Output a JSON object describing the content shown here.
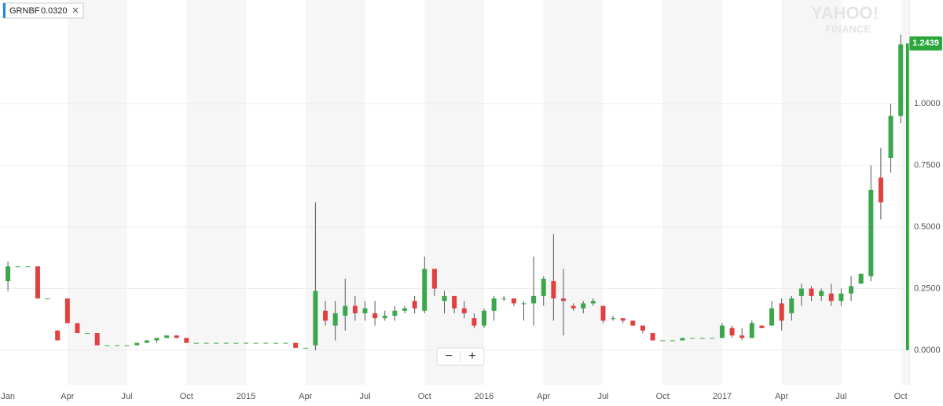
{
  "chart_data": {
    "type": "candlestick",
    "legend": {
      "value": "0.0320"
    },
    "watermark": [
      "YAHOO!",
      "FINANCE"
    ],
    "zoom": [
      "−",
      "+"
    ],
    "up_color": "#3aa84a",
    "down_color": "#e2403f",
    "last_color": "#2aa63a",
    "grid": true,
    "xlim": [
      -0.8,
      90.7
    ],
    "xticks": [
      {
        "value": 0,
        "label": "Jan"
      },
      {
        "value": 6,
        "label": "Apr"
      },
      {
        "value": 12,
        "label": "Jul"
      },
      {
        "value": 18,
        "label": "Oct"
      },
      {
        "value": 24,
        "label": "2015"
      },
      {
        "value": 30,
        "label": "Apr"
      },
      {
        "value": 36,
        "label": "Jul"
      },
      {
        "value": 42,
        "label": "Oct"
      },
      {
        "value": 48,
        "label": "2016"
      },
      {
        "value": 54,
        "label": "Apr"
      },
      {
        "value": 60,
        "label": "Jul"
      },
      {
        "value": 66,
        "label": "Oct"
      },
      {
        "value": 72,
        "label": "2017"
      },
      {
        "value": 78,
        "label": "Apr"
      },
      {
        "value": 84,
        "label": "Jul"
      },
      {
        "value": 90,
        "label": "Oct"
      }
    ],
    "ylim": [
      -0.14,
      1.42
    ],
    "yticks": [
      {
        "value": 0,
        "label": "0.0000"
      },
      {
        "value": 0.25,
        "label": "0.2500"
      },
      {
        "value": 0.5,
        "label": "0.5000"
      },
      {
        "value": 0.75,
        "label": "0.7500"
      },
      {
        "value": 1,
        "label": "1.0000"
      }
    ],
    "last_value": 1.2439,
    "series": [
      {
        "name": "GRNBF",
        "open": [
          0.28,
          0.34,
          0.34,
          0.34,
          0.21,
          0.08,
          0.21,
          0.11,
          0.07,
          0.07,
          0.02,
          0.02,
          0.02,
          0.02,
          0.03,
          0.04,
          0.05,
          0.06,
          0.05,
          0.03,
          0.03,
          0.03,
          0.03,
          0.03,
          0.03,
          0.03,
          0.03,
          0.03,
          0.03,
          0.03,
          0.01,
          0.02,
          0.16,
          0.1,
          0.14,
          0.18,
          0.15,
          0.15,
          0.13,
          0.14,
          0.16,
          0.2,
          0.16,
          0.33,
          0.2,
          0.22,
          0.17,
          0.13,
          0.1,
          0.16,
          0.21,
          0.21,
          0.19,
          0.19,
          0.22,
          0.28,
          0.21,
          0.18,
          0.17,
          0.19,
          0.18,
          0.13,
          0.13,
          0.12,
          0.1,
          0.07,
          0.04,
          0.04,
          0.04,
          0.05,
          0.05,
          0.05,
          0.05,
          0.09,
          0.06,
          0.05,
          0.1,
          0.1,
          0.19,
          0.15,
          0.22,
          0.25,
          0.22,
          0.23,
          0.2,
          0.23,
          0.27,
          0.3,
          0.7,
          0.78,
          0.95
        ],
        "high": [
          0.36,
          0.34,
          0.34,
          0.34,
          0.21,
          0.08,
          0.21,
          0.11,
          0.07,
          0.07,
          0.02,
          0.02,
          0.02,
          0.03,
          0.04,
          0.05,
          0.06,
          0.06,
          0.05,
          0.03,
          0.03,
          0.03,
          0.03,
          0.03,
          0.03,
          0.03,
          0.03,
          0.03,
          0.03,
          0.03,
          0.01,
          0.6,
          0.2,
          0.2,
          0.29,
          0.22,
          0.2,
          0.2,
          0.16,
          0.18,
          0.18,
          0.22,
          0.38,
          0.33,
          0.24,
          0.22,
          0.2,
          0.15,
          0.17,
          0.22,
          0.22,
          0.21,
          0.2,
          0.38,
          0.3,
          0.47,
          0.33,
          0.19,
          0.2,
          0.21,
          0.18,
          0.14,
          0.13,
          0.12,
          0.1,
          0.07,
          0.04,
          0.04,
          0.05,
          0.05,
          0.05,
          0.05,
          0.11,
          0.1,
          0.09,
          0.12,
          0.1,
          0.2,
          0.21,
          0.22,
          0.27,
          0.26,
          0.25,
          0.27,
          0.25,
          0.3,
          0.31,
          0.75,
          0.82,
          1.0,
          1.28
        ],
        "low": [
          0.24,
          0.34,
          0.34,
          0.21,
          0.21,
          0.04,
          0.11,
          0.07,
          0.07,
          0.02,
          0.02,
          0.02,
          0.02,
          0.02,
          0.03,
          0.03,
          0.05,
          0.05,
          0.03,
          0.03,
          0.03,
          0.03,
          0.03,
          0.03,
          0.03,
          0.03,
          0.03,
          0.03,
          0.03,
          0.01,
          0.01,
          0.0,
          0.1,
          0.04,
          0.08,
          0.12,
          0.12,
          0.1,
          0.12,
          0.12,
          0.15,
          0.15,
          0.15,
          0.22,
          0.15,
          0.15,
          0.13,
          0.09,
          0.09,
          0.12,
          0.2,
          0.18,
          0.12,
          0.1,
          0.18,
          0.12,
          0.06,
          0.16,
          0.15,
          0.18,
          0.11,
          0.12,
          0.11,
          0.1,
          0.07,
          0.04,
          0.04,
          0.04,
          0.04,
          0.05,
          0.05,
          0.05,
          0.05,
          0.05,
          0.04,
          0.05,
          0.09,
          0.1,
          0.08,
          0.12,
          0.18,
          0.2,
          0.2,
          0.18,
          0.18,
          0.2,
          0.27,
          0.28,
          0.53,
          0.72,
          0.92
        ],
        "close": [
          0.34,
          0.34,
          0.34,
          0.21,
          0.21,
          0.04,
          0.11,
          0.07,
          0.07,
          0.02,
          0.02,
          0.02,
          0.02,
          0.03,
          0.04,
          0.05,
          0.06,
          0.05,
          0.03,
          0.03,
          0.03,
          0.03,
          0.03,
          0.03,
          0.03,
          0.03,
          0.03,
          0.03,
          0.03,
          0.01,
          0.01,
          0.24,
          0.12,
          0.15,
          0.18,
          0.15,
          0.17,
          0.13,
          0.14,
          0.16,
          0.17,
          0.17,
          0.33,
          0.25,
          0.22,
          0.17,
          0.15,
          0.1,
          0.16,
          0.21,
          0.21,
          0.19,
          0.19,
          0.22,
          0.29,
          0.21,
          0.2,
          0.17,
          0.19,
          0.2,
          0.12,
          0.13,
          0.12,
          0.1,
          0.08,
          0.04,
          0.04,
          0.04,
          0.05,
          0.05,
          0.05,
          0.05,
          0.1,
          0.06,
          0.05,
          0.11,
          0.09,
          0.17,
          0.12,
          0.21,
          0.25,
          0.22,
          0.24,
          0.2,
          0.23,
          0.26,
          0.31,
          0.65,
          0.6,
          0.95,
          1.24
        ]
      }
    ]
  }
}
